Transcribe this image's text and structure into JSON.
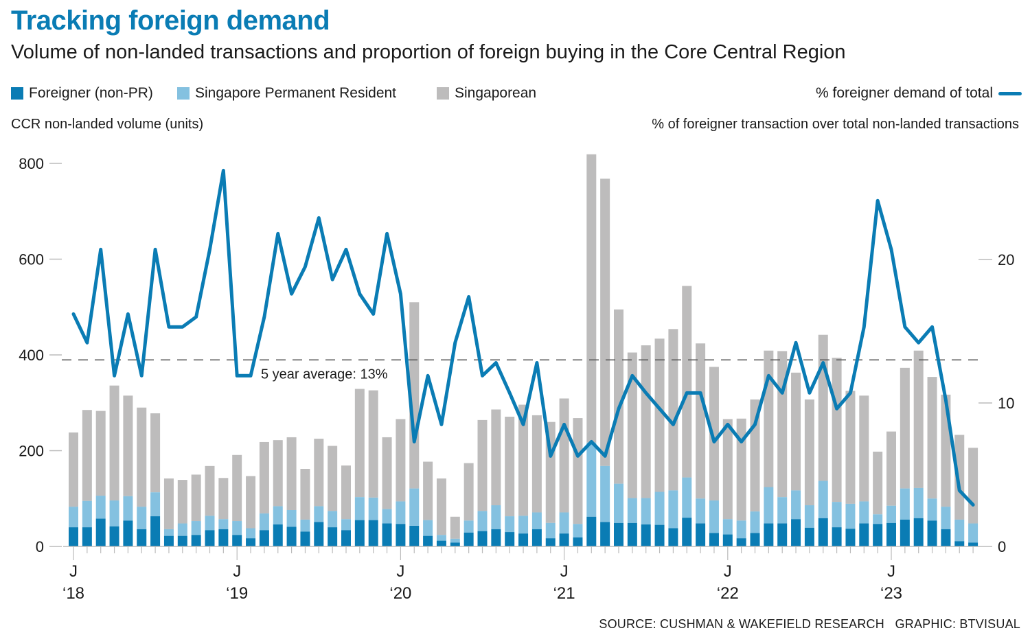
{
  "header": {
    "title": "Tracking foreign demand",
    "subtitle": "Volume of non-landed transactions and proportion of foreign buying in the Core Central Region"
  },
  "legend": {
    "foreigner": "Foreigner (non-PR)",
    "pr": "Singapore Permanent Resident",
    "singaporean": "Singaporean",
    "line": "% foreigner demand of total"
  },
  "axes": {
    "left_label": "CCR non-landed volume (units)",
    "right_label": "% of foreigner transaction over total non-landed transactions"
  },
  "footer": {
    "source": "SOURCE: CUSHMAN & WAKEFIELD RESEARCH   GRAPHIC: BTVISUAL"
  },
  "colors": {
    "foreigner": "#0a7cb4",
    "pr": "#84c1e0",
    "singaporean": "#bdbcbc",
    "line": "#0a7cb4",
    "title": "#0a7cb4"
  },
  "chart_data": {
    "type": "bar",
    "title": "Tracking foreign demand",
    "subtitle": "Volume of non-landed transactions and proportion of foreign buying in the Core Central Region",
    "xlabel": "",
    "ylabel": "CCR non-landed volume (units)",
    "y2label": "% of foreigner transaction over total non-landed transactions",
    "ylim": [
      0,
      800
    ],
    "y2lim": [
      0,
      26.7
    ],
    "yticks": [
      0,
      200,
      400,
      600,
      800
    ],
    "y2ticks": [
      0,
      10,
      20
    ],
    "grid": false,
    "legend_position": "top",
    "x_tick_labels": [
      {
        "month_index": 0,
        "top": "J",
        "bottom": "‘18"
      },
      {
        "month_index": 12,
        "top": "J",
        "bottom": "‘19"
      },
      {
        "month_index": 24,
        "top": "J",
        "bottom": "‘20"
      },
      {
        "month_index": 36,
        "top": "J",
        "bottom": "‘21"
      },
      {
        "month_index": 48,
        "top": "J",
        "bottom": "‘22"
      },
      {
        "month_index": 60,
        "top": "J",
        "bottom": "‘23"
      }
    ],
    "x_start": "2018-01",
    "x_frequency": "monthly",
    "reference_line": {
      "value_pct": 13,
      "label": "5 year average: 13%"
    },
    "series": [
      {
        "name": "Foreigner (non-PR)",
        "kind": "stacked-bar",
        "values": [
          40,
          40,
          58,
          42,
          54,
          36,
          63,
          22,
          22,
          24,
          34,
          36,
          24,
          17,
          34,
          46,
          41,
          31,
          51,
          40,
          34,
          55,
          55,
          48,
          47,
          43,
          22,
          12,
          8,
          29,
          32,
          36,
          30,
          27,
          36,
          17,
          27,
          19,
          62,
          51,
          49,
          49,
          46,
          45,
          38,
          60,
          48,
          28,
          25,
          17,
          28,
          48,
          48,
          57,
          39,
          59,
          40,
          37,
          48,
          47,
          49,
          56,
          59,
          54,
          36,
          11,
          8
        ]
      },
      {
        "name": "Singapore Permanent Resident",
        "kind": "stacked-bar",
        "values": [
          43,
          55,
          48,
          54,
          51,
          47,
          50,
          14,
          26,
          29,
          30,
          21,
          29,
          21,
          35,
          38,
          35,
          25,
          33,
          34,
          23,
          48,
          47,
          30,
          47,
          78,
          33,
          12,
          8,
          25,
          42,
          50,
          33,
          37,
          35,
          32,
          44,
          28,
          155,
          117,
          82,
          52,
          55,
          69,
          79,
          84,
          52,
          68,
          32,
          37,
          45,
          76,
          55,
          60,
          47,
          78,
          53,
          52,
          46,
          20,
          36,
          65,
          63,
          46,
          47,
          45,
          40
        ]
      },
      {
        "name": "Singaporean",
        "kind": "stacked-bar",
        "values": [
          155,
          190,
          177,
          240,
          210,
          207,
          165,
          106,
          91,
          97,
          104,
          86,
          138,
          109,
          149,
          138,
          152,
          106,
          141,
          136,
          112,
          226,
          224,
          150,
          172,
          389,
          122,
          118,
          46,
          120,
          190,
          200,
          208,
          232,
          203,
          211,
          238,
          221,
          602,
          600,
          364,
          304,
          319,
          320,
          337,
          400,
          324,
          279,
          209,
          213,
          234,
          285,
          305,
          246,
          221,
          305,
          301,
          236,
          221,
          131,
          155,
          252,
          287,
          254,
          234,
          177,
          158
        ]
      },
      {
        "name": "% foreigner demand of total",
        "kind": "line",
        "axis": "right",
        "values": [
          16.2,
          14.2,
          20.7,
          11.9,
          16.2,
          11.9,
          20.7,
          15.3,
          15.3,
          16.0,
          20.7,
          26.2,
          11.9,
          11.9,
          16.0,
          21.8,
          17.6,
          19.5,
          22.9,
          18.6,
          20.7,
          17.6,
          16.2,
          21.8,
          17.6,
          7.3,
          11.9,
          8.5,
          14.2,
          17.4,
          11.9,
          12.8,
          10.7,
          8.5,
          12.8,
          6.3,
          8.5,
          6.3,
          7.3,
          6.3,
          9.6,
          11.9,
          10.7,
          9.6,
          8.5,
          10.7,
          10.7,
          7.3,
          8.5,
          7.3,
          8.5,
          11.9,
          10.7,
          14.2,
          10.7,
          12.8,
          9.6,
          10.7,
          15.3,
          24.1,
          20.7,
          15.3,
          14.2,
          15.3,
          10.2,
          3.9,
          2.9
        ]
      }
    ]
  }
}
